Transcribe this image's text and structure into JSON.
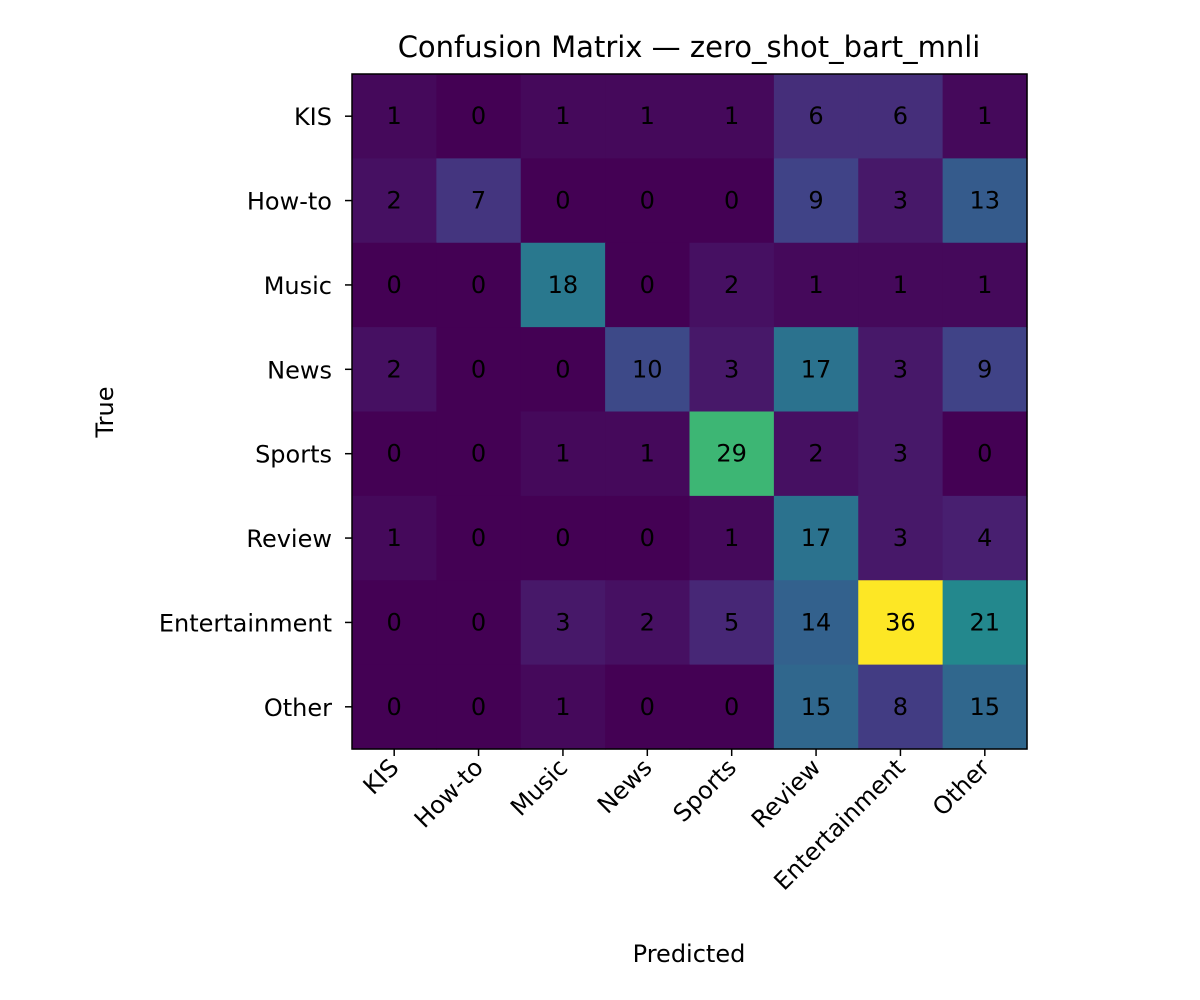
{
  "chart_data": {
    "type": "heatmap",
    "title": "Confusion Matrix — zero_shot_bart_mnli",
    "xlabel": "Predicted",
    "ylabel": "True",
    "x_categories": [
      "KIS",
      "How-to",
      "Music",
      "News",
      "Sports",
      "Review",
      "Entertainment",
      "Other"
    ],
    "y_categories": [
      "KIS",
      "How-to",
      "Music",
      "News",
      "Sports",
      "Review",
      "Entertainment",
      "Other"
    ],
    "values": [
      [
        1,
        0,
        1,
        1,
        1,
        6,
        6,
        1
      ],
      [
        2,
        7,
        0,
        0,
        0,
        9,
        3,
        13
      ],
      [
        0,
        0,
        18,
        0,
        2,
        1,
        1,
        1
      ],
      [
        2,
        0,
        0,
        10,
        3,
        17,
        3,
        9
      ],
      [
        0,
        0,
        1,
        1,
        29,
        2,
        3,
        0
      ],
      [
        1,
        0,
        0,
        0,
        1,
        17,
        3,
        4
      ],
      [
        0,
        0,
        3,
        2,
        5,
        14,
        36,
        21
      ],
      [
        0,
        0,
        1,
        0,
        0,
        15,
        8,
        15
      ]
    ],
    "colormap": "viridis",
    "vmin": 0,
    "vmax": 36,
    "grid": false,
    "legend": "none"
  }
}
